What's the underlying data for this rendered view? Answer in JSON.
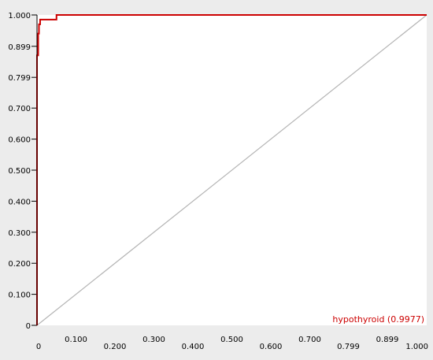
{
  "chart_data": {
    "type": "line",
    "title": "",
    "xlabel": "",
    "ylabel": "",
    "xlim": [
      0,
      1.0
    ],
    "ylim": [
      0,
      1.0
    ],
    "grid": false,
    "legend_placement": "bottom-right",
    "x_tick_labels": [
      "0",
      "0.100",
      "0.200",
      "0.300",
      "0.400",
      "0.500",
      "0.600",
      "0.700",
      "0.799",
      "0.899",
      "1.000"
    ],
    "x_tick_values": [
      0,
      0.1,
      0.2,
      0.3,
      0.4,
      0.5,
      0.6,
      0.7,
      0.799,
      0.899,
      1.0
    ],
    "y_tick_labels": [
      "0",
      "0.100",
      "0.200",
      "0.300",
      "0.400",
      "0.500",
      "0.600",
      "0.700",
      "0.799",
      "0.899",
      "1.000"
    ],
    "y_tick_values": [
      0,
      0.1,
      0.2,
      0.3,
      0.4,
      0.5,
      0.6,
      0.7,
      0.799,
      0.899,
      1.0
    ],
    "series": [
      {
        "name": "hypothyroid (0.9977)",
        "color": "#cc0000",
        "x": [
          0,
          0,
          0.003,
          0.003,
          0.005,
          0.005,
          0.008,
          0.008,
          0.05,
          0.05,
          1.0
        ],
        "y": [
          0,
          0.87,
          0.87,
          0.94,
          0.94,
          0.97,
          0.97,
          0.985,
          0.985,
          1.0,
          1.0
        ]
      },
      {
        "color": "#b4b4b4",
        "x": [
          0,
          1.0
        ],
        "y": [
          0,
          1.0
        ]
      }
    ]
  }
}
